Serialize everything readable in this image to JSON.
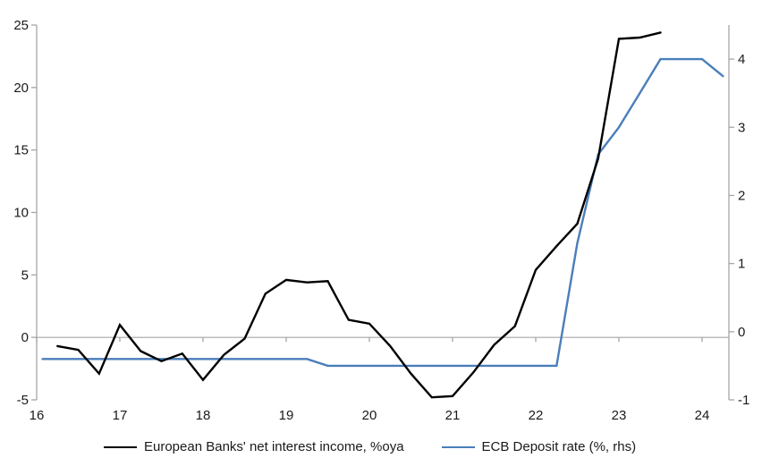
{
  "chart_data": {
    "type": "line",
    "title": "",
    "x_axis": {
      "min": 16,
      "max": 24.32,
      "ticks": [
        16,
        17,
        18,
        19,
        20,
        21,
        22,
        23,
        24
      ]
    },
    "left_axis": {
      "min": -5,
      "max": 25,
      "ticks": [
        -5,
        0,
        5,
        10,
        15,
        20,
        25
      ]
    },
    "right_axis": {
      "min": -1,
      "max": 4.5,
      "ticks": [
        -1,
        0,
        1,
        2,
        3,
        4
      ]
    },
    "grid": false,
    "zero_line": true,
    "legend_position": "bottom",
    "series": [
      {
        "name": "European Banks' net interest income, %oya",
        "axis": "left",
        "color": "#000000",
        "points": [
          [
            16.25,
            -0.7
          ],
          [
            16.5,
            -1.0
          ],
          [
            16.75,
            -2.9
          ],
          [
            17.0,
            1.0
          ],
          [
            17.25,
            -1.1
          ],
          [
            17.5,
            -1.9
          ],
          [
            17.75,
            -1.3
          ],
          [
            18.0,
            -3.4
          ],
          [
            18.25,
            -1.4
          ],
          [
            18.5,
            -0.1
          ],
          [
            18.75,
            3.5
          ],
          [
            19.0,
            4.6
          ],
          [
            19.25,
            4.4
          ],
          [
            19.5,
            4.5
          ],
          [
            19.75,
            1.4
          ],
          [
            20.0,
            1.1
          ],
          [
            20.25,
            -0.7
          ],
          [
            20.5,
            -2.9
          ],
          [
            20.75,
            -4.8
          ],
          [
            21.0,
            -4.7
          ],
          [
            21.25,
            -2.8
          ],
          [
            21.5,
            -0.6
          ],
          [
            21.75,
            0.9
          ],
          [
            22.0,
            5.4
          ],
          [
            22.25,
            7.3
          ],
          [
            22.5,
            9.1
          ],
          [
            22.75,
            14.3
          ],
          [
            23.0,
            23.9
          ],
          [
            23.25,
            24.0
          ],
          [
            23.5,
            24.4
          ]
        ]
      },
      {
        "name": "ECB Deposit rate (%, rhs)",
        "axis": "right",
        "color": "#4A7EBB",
        "points": [
          [
            16.07,
            -0.4
          ],
          [
            19.25,
            -0.4
          ],
          [
            19.5,
            -0.5
          ],
          [
            22.25,
            -0.5
          ],
          [
            22.5,
            1.3
          ],
          [
            22.75,
            2.6
          ],
          [
            23.0,
            3.0
          ],
          [
            23.25,
            3.5
          ],
          [
            23.5,
            4.0
          ],
          [
            24.0,
            4.0
          ],
          [
            24.25,
            3.75
          ]
        ]
      }
    ]
  },
  "colors": {
    "axis": "#A6A6A6",
    "zero_line": "#A6A6A6",
    "background": "#FFFFFF",
    "text": "#1A1A1A"
  }
}
